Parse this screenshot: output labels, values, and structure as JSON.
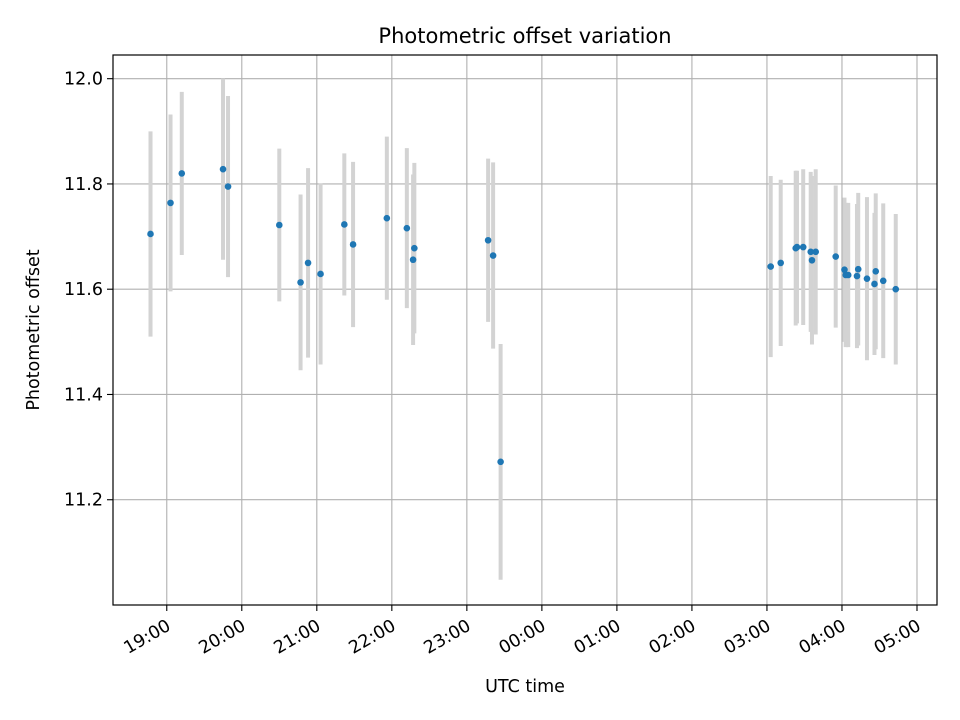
{
  "chart_data": {
    "type": "scatter",
    "title": "Photometric offset variation",
    "xlabel": "UTC time",
    "ylabel": "Photometric offset",
    "grid": true,
    "x_axis": "time",
    "xlim": [
      "18:17",
      "05:16"
    ],
    "ylim": [
      11.0,
      12.045
    ],
    "x_ticks": [
      "19:00",
      "20:00",
      "21:00",
      "22:00",
      "23:00",
      "00:00",
      "01:00",
      "02:00",
      "03:00",
      "04:00",
      "05:00"
    ],
    "y_ticks": [
      11.2,
      11.4,
      11.6,
      11.8,
      12.0
    ],
    "y_tick_labels": [
      "11.2",
      "11.4",
      "11.6",
      "11.8",
      "12.0"
    ],
    "colors": {
      "marker": "#1f77b4",
      "errorbar": "#d3d3d3",
      "grid": "#b0b0b0"
    },
    "series": [
      {
        "errorbars": true,
        "points": [
          {
            "x": "18:47",
            "y": 11.705,
            "err": 0.195
          },
          {
            "x": "19:03",
            "y": 11.764,
            "err": 0.168
          },
          {
            "x": "19:12",
            "y": 11.82,
            "err": 0.155
          },
          {
            "x": "19:45",
            "y": 11.828,
            "err": 0.172
          },
          {
            "x": "19:49",
            "y": 11.795,
            "err": 0.172
          },
          {
            "x": "20:30",
            "y": 11.722,
            "err": 0.145
          },
          {
            "x": "20:47",
            "y": 11.613,
            "err": 0.167
          },
          {
            "x": "20:53",
            "y": 11.65,
            "err": 0.18
          },
          {
            "x": "21:03",
            "y": 11.629,
            "err": 0.172
          },
          {
            "x": "21:22",
            "y": 11.723,
            "err": 0.135
          },
          {
            "x": "21:29",
            "y": 11.685,
            "err": 0.157
          },
          {
            "x": "21:56",
            "y": 11.735,
            "err": 0.155
          },
          {
            "x": "22:12",
            "y": 11.716,
            "err": 0.152
          },
          {
            "x": "22:17",
            "y": 11.656,
            "err": 0.162
          },
          {
            "x": "22:18",
            "y": 11.678,
            "err": 0.162
          },
          {
            "x": "23:17",
            "y": 11.693,
            "err": 0.155
          },
          {
            "x": "23:21",
            "y": 11.664,
            "err": 0.177
          },
          {
            "x": "23:27",
            "y": 11.272,
            "err": 0.224
          },
          {
            "x": "03:03",
            "y": 11.643,
            "err": 0.172
          },
          {
            "x": "03:11",
            "y": 11.65,
            "err": 0.158
          },
          {
            "x": "03:23",
            "y": 11.678,
            "err": 0.147
          },
          {
            "x": "03:24",
            "y": 11.68,
            "err": 0.145
          },
          {
            "x": "03:29",
            "y": 11.68,
            "err": 0.148
          },
          {
            "x": "03:35",
            "y": 11.671,
            "err": 0.152
          },
          {
            "x": "03:36",
            "y": 11.655,
            "err": 0.16
          },
          {
            "x": "03:39",
            "y": 11.671,
            "err": 0.157
          },
          {
            "x": "03:55",
            "y": 11.662,
            "err": 0.135
          },
          {
            "x": "04:02",
            "y": 11.637,
            "err": 0.137
          },
          {
            "x": "04:03",
            "y": 11.627,
            "err": 0.137
          },
          {
            "x": "04:05",
            "y": 11.627,
            "err": 0.137
          },
          {
            "x": "04:12",
            "y": 11.625,
            "err": 0.137
          },
          {
            "x": "04:13",
            "y": 11.638,
            "err": 0.145
          },
          {
            "x": "04:20",
            "y": 11.62,
            "err": 0.155
          },
          {
            "x": "04:26",
            "y": 11.61,
            "err": 0.135
          },
          {
            "x": "04:27",
            "y": 11.634,
            "err": 0.148
          },
          {
            "x": "04:33",
            "y": 11.616,
            "err": 0.147
          },
          {
            "x": "04:43",
            "y": 11.6,
            "err": 0.143
          }
        ]
      }
    ]
  }
}
